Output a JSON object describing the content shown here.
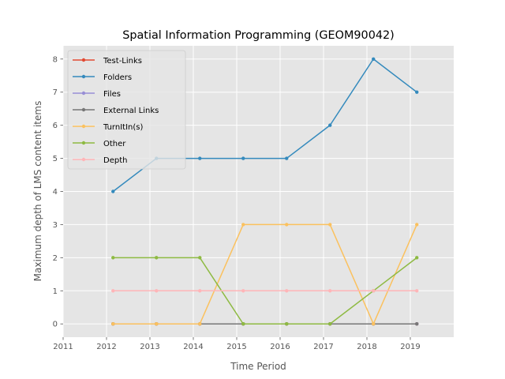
{
  "chart_data": {
    "type": "line",
    "title": "Spatial Information Programming (GEOM90042)",
    "xlabel": "Time Period",
    "ylabel": "Maximum depth of LMS content items",
    "x": [
      2012.15,
      2013.15,
      2014.15,
      2015.15,
      2016.15,
      2017.15,
      2018.15,
      2019.15
    ],
    "xlim": [
      2011,
      2020
    ],
    "ylim": [
      -0.4,
      8.4
    ],
    "xticks": [
      "2011",
      "2012",
      "2013",
      "2014",
      "2015",
      "2016",
      "2017",
      "2018",
      "2019"
    ],
    "yticks": [
      "0",
      "1",
      "2",
      "3",
      "4",
      "5",
      "6",
      "7",
      "8"
    ],
    "grid": true,
    "legend_position": "top-left",
    "series": [
      {
        "name": "Test-Links",
        "color": "#E24A33",
        "values": [
          0,
          0,
          0,
          0,
          0,
          0,
          0,
          0
        ]
      },
      {
        "name": "Folders",
        "color": "#348ABD",
        "values": [
          4,
          5,
          5,
          5,
          5,
          6,
          8,
          7
        ]
      },
      {
        "name": "Files",
        "color": "#988ED5",
        "values": [
          0,
          0,
          0,
          0,
          0,
          0,
          0,
          0
        ]
      },
      {
        "name": "External Links",
        "color": "#777777",
        "values": [
          0,
          0,
          0,
          0,
          0,
          0,
          0,
          0
        ]
      },
      {
        "name": "TurnItIn(s)",
        "color": "#FBC15E",
        "values": [
          0,
          0,
          0,
          3,
          3,
          3,
          0,
          3
        ]
      },
      {
        "name": "Other",
        "color": "#8EBA42",
        "values": [
          2,
          2,
          2,
          0,
          0,
          0,
          1,
          2
        ]
      },
      {
        "name": "Depth",
        "color": "#FFB5B8",
        "values": [
          1,
          1,
          1,
          1,
          1,
          1,
          1,
          1
        ]
      }
    ]
  }
}
